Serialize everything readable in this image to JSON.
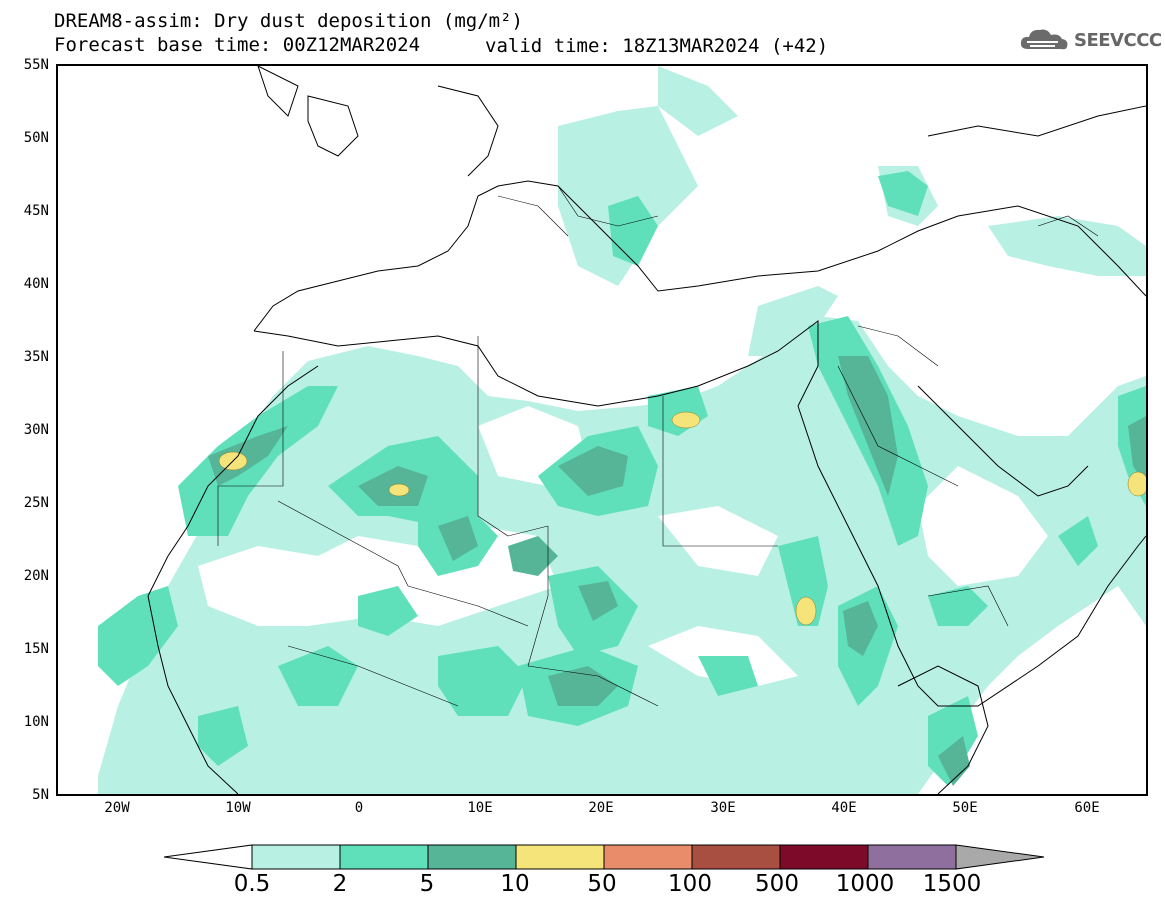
{
  "title": {
    "line1": "DREAM8-assim: Dry dust deposition (mg/m²)",
    "line2": "Forecast base time: 00Z12MAR2024",
    "valid": "valid time: 18Z13MAR2024 (+42)"
  },
  "logo": {
    "icon": "cloud-logo-icon",
    "text": "SEEVCCC",
    "color": "#666666"
  },
  "axes": {
    "lat_labels": [
      "55N",
      "50N",
      "45N",
      "40N",
      "35N",
      "30N",
      "25N",
      "20N",
      "15N",
      "10N",
      "5N"
    ],
    "lon_labels": [
      "20W",
      "10W",
      "0",
      "10E",
      "20E",
      "30E",
      "40E",
      "50E",
      "60E"
    ],
    "lat_range": [
      5,
      55
    ],
    "lon_range": [
      -25,
      65
    ]
  },
  "legend": {
    "labels": [
      "0.5",
      "2",
      "5",
      "10",
      "50",
      "100",
      "500",
      "1000",
      "1500"
    ],
    "colors": [
      "#ffffff",
      "#b9f0e4",
      "#5fe0bb",
      "#56b596",
      "#f5e47a",
      "#e98c6a",
      "#a94f42",
      "#7e0a2a",
      "#8f6f9e",
      "#a9a9a9"
    ]
  },
  "chart_data": {
    "type": "heatmap",
    "title": "DREAM8-assim: Dry dust deposition (mg/m²)",
    "units": "mg/m²",
    "xlabel": "",
    "ylabel": "",
    "x_range": [
      -25,
      65
    ],
    "y_range": [
      5,
      55
    ],
    "levels": [
      0.5,
      2,
      5,
      10,
      50,
      100,
      500,
      1000,
      1500
    ],
    "peak_regions_10_to_50": [
      {
        "lon": -10,
        "lat": 27.5
      },
      {
        "lon": 3,
        "lat": 25.5
      },
      {
        "lon": 27,
        "lat": 30.5
      },
      {
        "lon": 37,
        "lat": 16.5
      },
      {
        "lon": 64,
        "lat": 26
      }
    ]
  }
}
